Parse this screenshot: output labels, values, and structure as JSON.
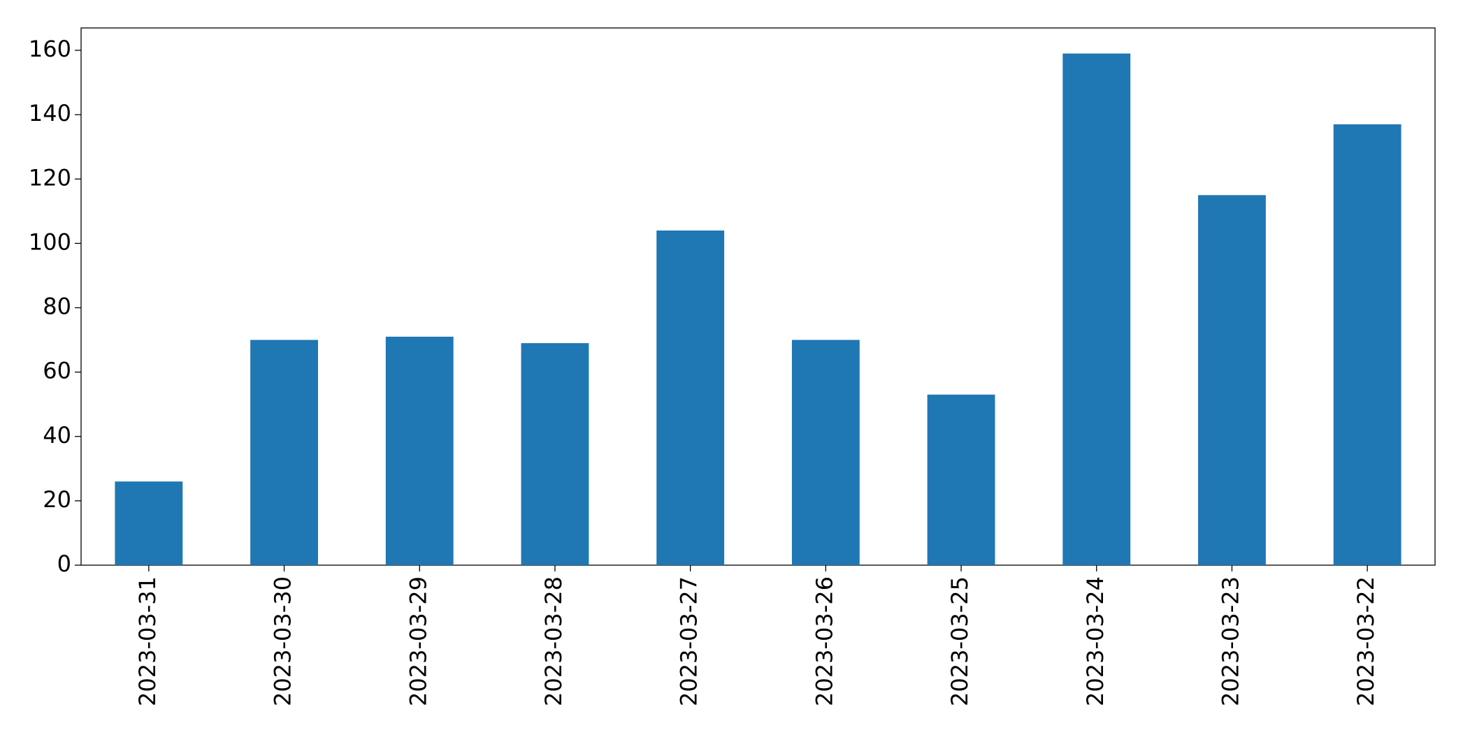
{
  "chart_data": {
    "type": "bar",
    "categories": [
      "2023-03-31",
      "2023-03-30",
      "2023-03-29",
      "2023-03-28",
      "2023-03-27",
      "2023-03-26",
      "2023-03-25",
      "2023-03-24",
      "2023-03-23",
      "2023-03-22"
    ],
    "values": [
      26,
      70,
      71,
      69,
      104,
      70,
      53,
      159,
      115,
      137
    ],
    "color": "#1f77b4",
    "ylim": [
      0,
      166.95
    ],
    "yticks": [
      0,
      20,
      40,
      60,
      80,
      100,
      120,
      140,
      160
    ],
    "grid": false
  }
}
